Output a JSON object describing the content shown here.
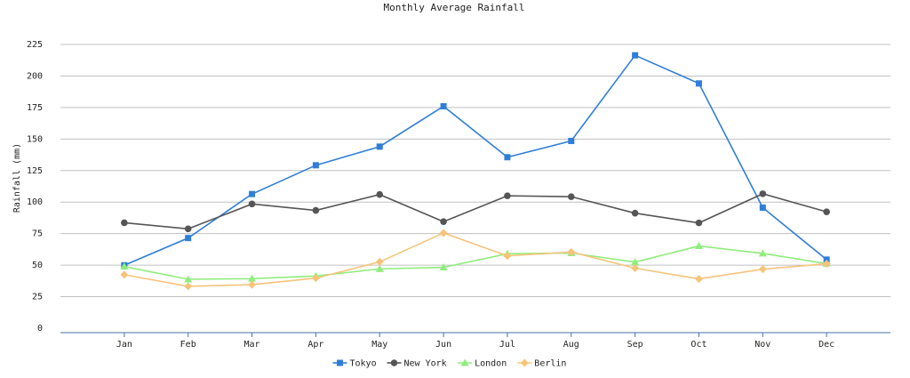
{
  "chart_data": {
    "type": "line",
    "title": "Monthly Average Rainfall",
    "ylabel": "Rainfall (mm)",
    "xlabel": "",
    "categories": [
      "Jan",
      "Feb",
      "Mar",
      "Apr",
      "May",
      "Jun",
      "Jul",
      "Aug",
      "Sep",
      "Oct",
      "Nov",
      "Dec"
    ],
    "ylim": [
      0,
      225
    ],
    "yticks": [
      0,
      25,
      50,
      75,
      100,
      125,
      150,
      175,
      200,
      225
    ],
    "grid": true,
    "legend_position": "bottom",
    "series": [
      {
        "name": "Tokyo",
        "color": "#2f7ed8",
        "marker": "square",
        "values": [
          49.9,
          71.5,
          106.4,
          129.2,
          144.0,
          176.0,
          135.6,
          148.5,
          216.4,
          194.1,
          95.6,
          54.4
        ]
      },
      {
        "name": "New York",
        "color": "#555555",
        "marker": "circle",
        "values": [
          83.6,
          78.8,
          98.5,
          93.4,
          106.0,
          84.5,
          105.0,
          104.3,
          91.2,
          83.5,
          106.6,
          92.3
        ]
      },
      {
        "name": "London",
        "color": "#90ed7d",
        "marker": "triangle",
        "values": [
          48.9,
          38.8,
          39.3,
          41.4,
          47.0,
          48.3,
          59.0,
          59.6,
          52.4,
          65.2,
          59.3,
          51.2
        ]
      },
      {
        "name": "Berlin",
        "color": "#f7c37a",
        "marker": "diamond",
        "values": [
          42.4,
          33.2,
          34.5,
          39.7,
          52.6,
          75.5,
          57.4,
          60.4,
          47.6,
          39.1,
          46.8,
          51.1
        ]
      }
    ]
  }
}
